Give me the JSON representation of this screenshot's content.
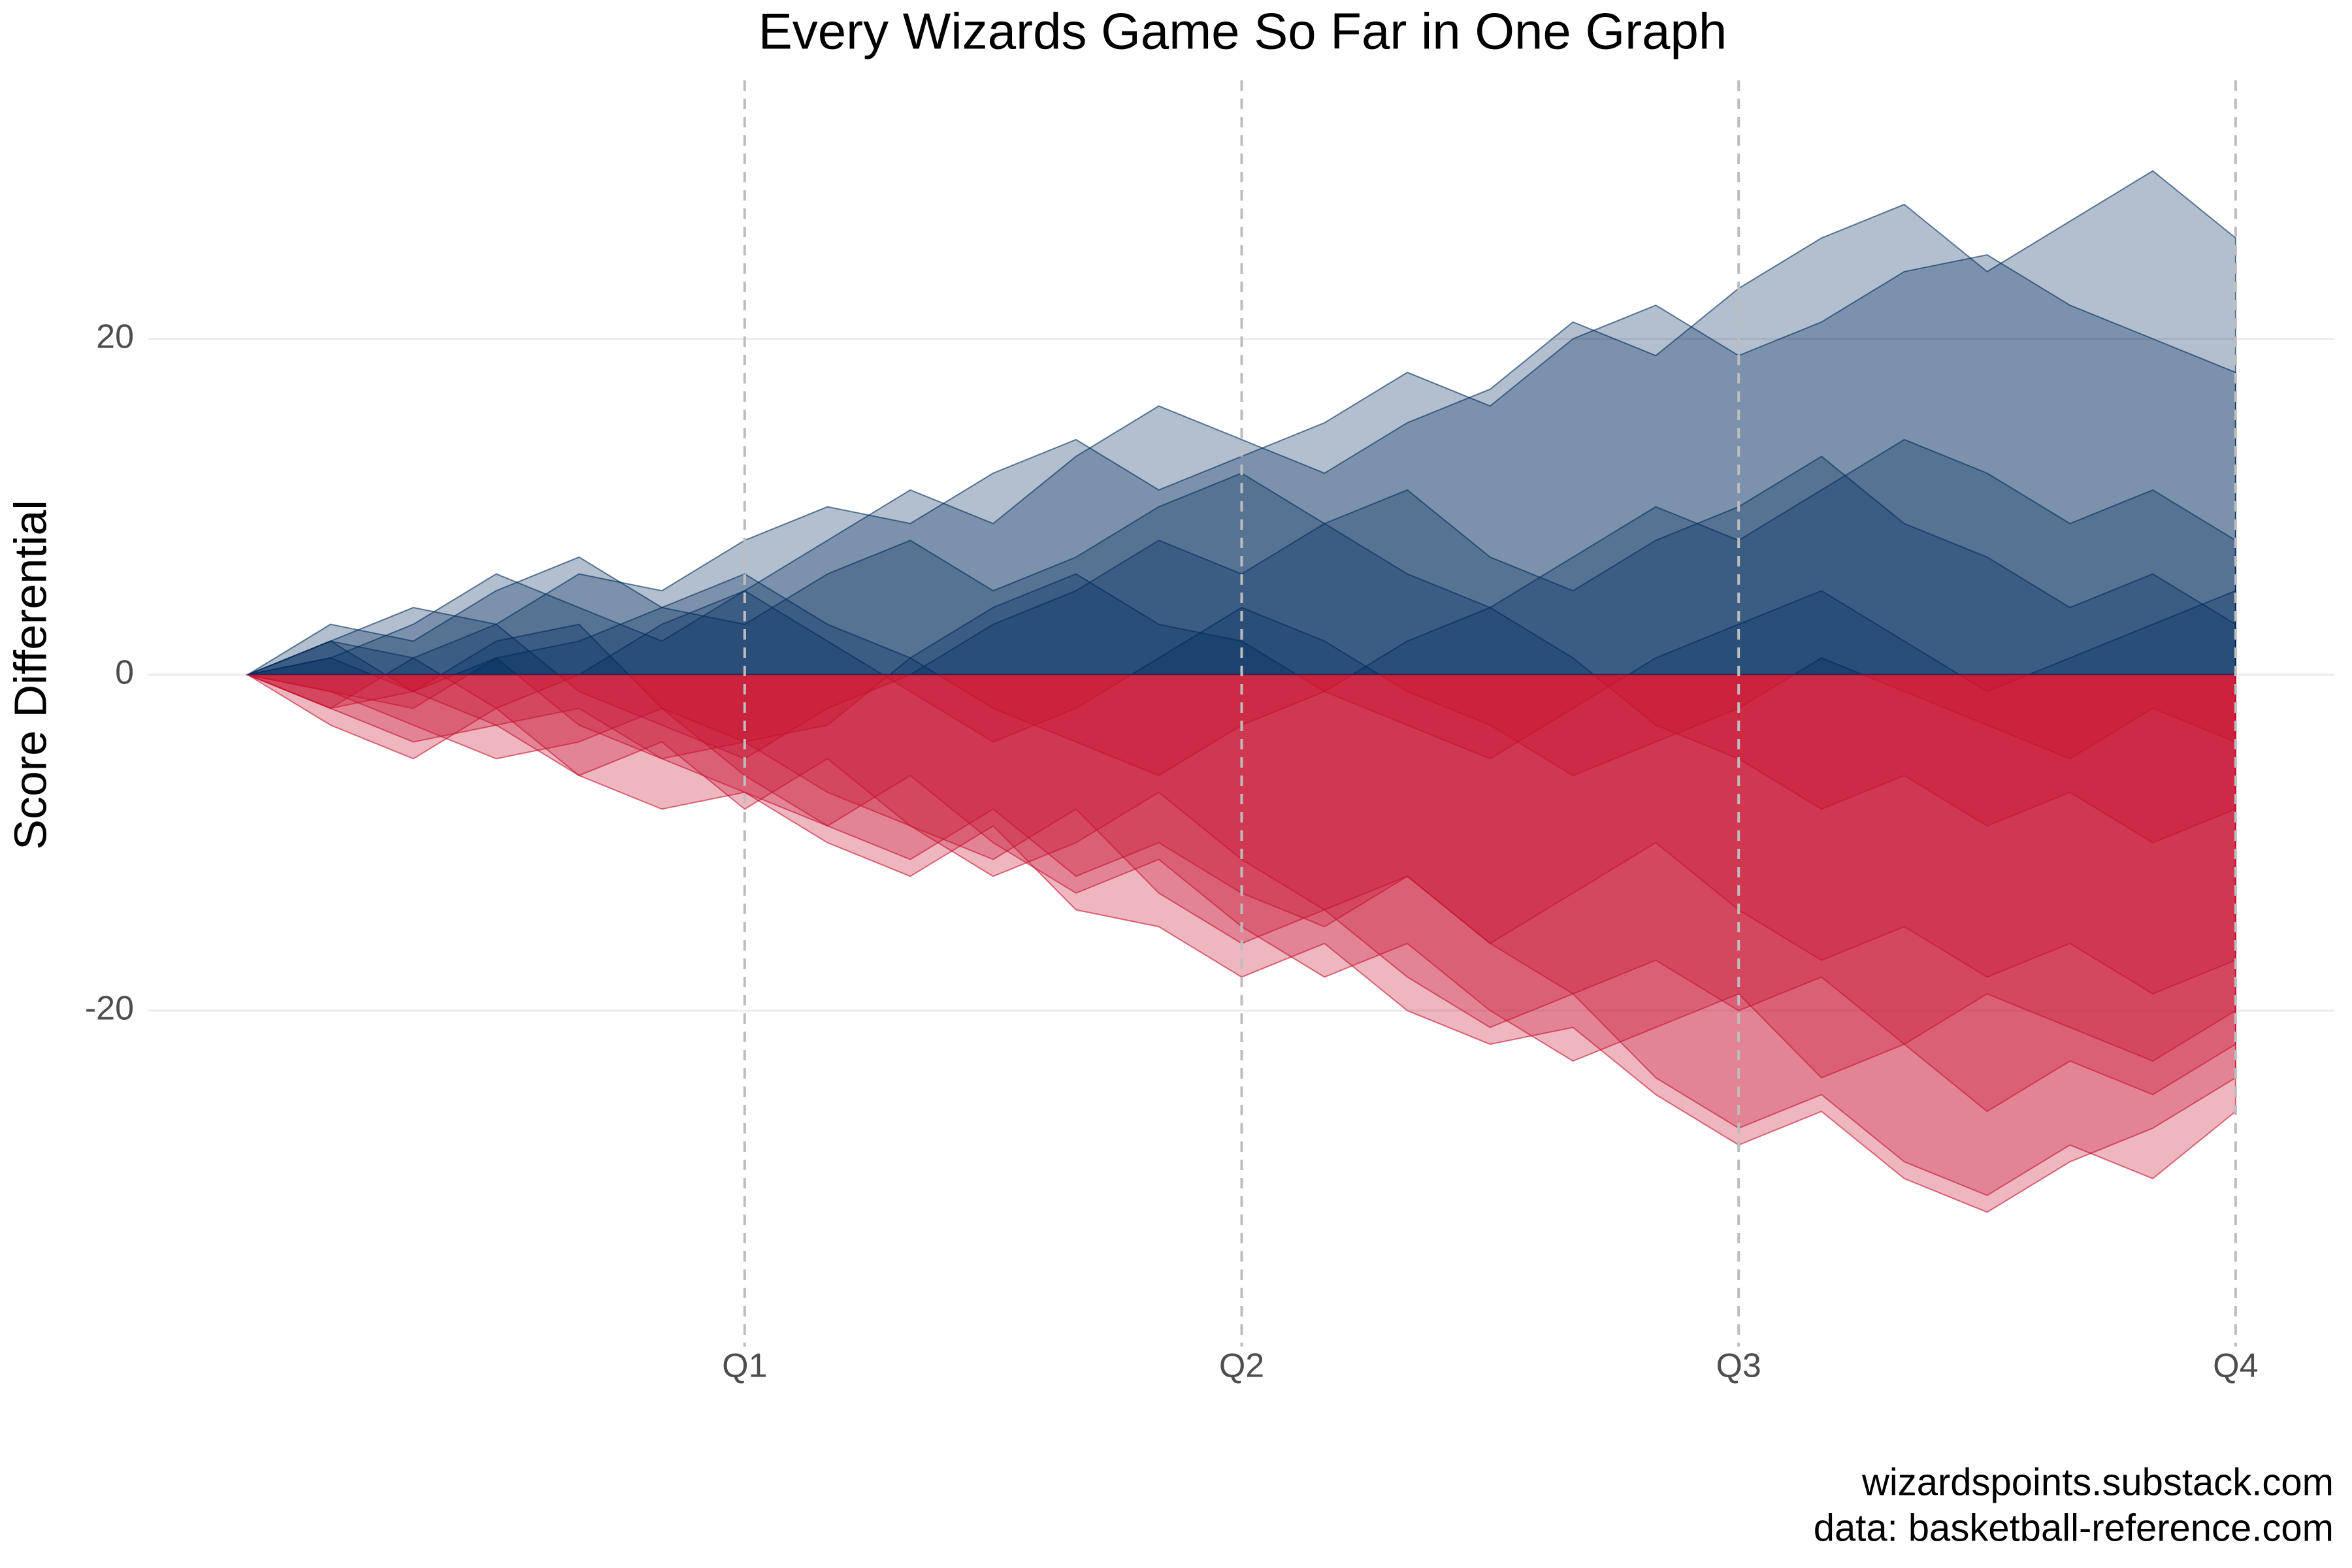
{
  "chart_data": {
    "type": "area",
    "title": "Every Wizards Game So Far in One Graph",
    "ylabel": "Score Differential",
    "caption": [
      "wizardspoints.substack.com",
      "data: basketball-reference.com"
    ],
    "positive_color": "#002B5C",
    "negative_color": "#C8102E",
    "xlim": [
      -2.4,
      50.4
    ],
    "xticks": [
      {
        "value": 12,
        "label": "Q1"
      },
      {
        "value": 24,
        "label": "Q2"
      },
      {
        "value": 36,
        "label": "Q3"
      },
      {
        "value": 48,
        "label": "Q4"
      }
    ],
    "ylim": [
      -40,
      35
    ],
    "yticks": [
      -20,
      0,
      20
    ],
    "grid": true,
    "x": [
      0,
      2,
      4,
      6,
      8,
      10,
      12,
      14,
      16,
      18,
      20,
      22,
      24,
      26,
      28,
      30,
      32,
      34,
      36,
      38,
      40,
      42,
      44,
      46,
      48
    ],
    "series": [
      {
        "values": [
          0,
          2,
          4,
          3,
          6,
          5,
          8,
          10,
          9,
          12,
          14,
          11,
          13,
          15,
          18,
          16,
          20,
          22,
          19,
          21,
          24,
          25,
          22,
          20,
          18
        ]
      },
      {
        "values": [
          0,
          -2,
          -4,
          -3,
          -6,
          -8,
          -7,
          -10,
          -12,
          -9,
          -14,
          -15,
          -18,
          -16,
          -20,
          -22,
          -21,
          -25,
          -28,
          -26,
          -30,
          -32,
          -29,
          -27,
          -24
        ]
      },
      {
        "values": [
          0,
          1,
          -1,
          2,
          3,
          -2,
          -4,
          -3,
          1,
          4,
          6,
          3,
          2,
          -1,
          -3,
          -5,
          -2,
          1,
          3,
          5,
          2,
          -1,
          1,
          3,
          5
        ]
      },
      {
        "values": [
          0,
          -1,
          -3,
          -5,
          -4,
          -2,
          -6,
          -9,
          -11,
          -8,
          -12,
          -10,
          -13,
          -15,
          -12,
          -16,
          -19,
          -17,
          -20,
          -18,
          -22,
          -19,
          -21,
          -23,
          -20
        ]
      },
      {
        "values": [
          0,
          3,
          2,
          5,
          7,
          4,
          6,
          3,
          1,
          -2,
          -4,
          -6,
          -3,
          -1,
          2,
          4,
          1,
          -3,
          -5,
          -8,
          -6,
          -9,
          -7,
          -10,
          -8
        ]
      },
      {
        "values": [
          0,
          -2,
          1,
          3,
          -1,
          -3,
          -5,
          -2,
          0,
          3,
          5,
          8,
          6,
          9,
          11,
          7,
          5,
          8,
          10,
          13,
          9,
          7,
          4,
          6,
          3
        ]
      },
      {
        "values": [
          0,
          2,
          -1,
          -3,
          -2,
          -5,
          -7,
          -9,
          -6,
          -10,
          -13,
          -11,
          -15,
          -18,
          -16,
          -20,
          -23,
          -21,
          -19,
          -24,
          -22,
          -26,
          -23,
          -25,
          -22
        ]
      },
      {
        "values": [
          0,
          -3,
          -5,
          -2,
          -6,
          -4,
          -8,
          -5,
          -9,
          -12,
          -10,
          -7,
          -11,
          -14,
          -12,
          -16,
          -13,
          -10,
          -14,
          -17,
          -15,
          -18,
          -16,
          -19,
          -17
        ]
      },
      {
        "values": [
          0,
          1,
          3,
          6,
          4,
          2,
          5,
          8,
          11,
          9,
          13,
          16,
          14,
          12,
          15,
          17,
          21,
          19,
          23,
          26,
          28,
          24,
          27,
          30,
          26
        ]
      },
      {
        "values": [
          0,
          -1,
          -2,
          1,
          -3,
          -5,
          -4,
          -7,
          -9,
          -11,
          -8,
          -13,
          -16,
          -14,
          -18,
          -21,
          -19,
          -24,
          -27,
          -25,
          -29,
          -31,
          -28,
          -30,
          -26
        ]
      },
      {
        "values": [
          0,
          2,
          1,
          -2,
          0,
          3,
          5,
          2,
          -1,
          -4,
          -2,
          1,
          4,
          2,
          -1,
          -3,
          -6,
          -4,
          -2,
          1,
          -1,
          -3,
          -5,
          -2,
          -4
        ]
      },
      {
        "values": [
          0,
          -2,
          -1,
          1,
          2,
          4,
          3,
          6,
          8,
          5,
          7,
          10,
          12,
          9,
          6,
          4,
          7,
          10,
          8,
          11,
          14,
          12,
          9,
          11,
          8
        ]
      }
    ]
  }
}
